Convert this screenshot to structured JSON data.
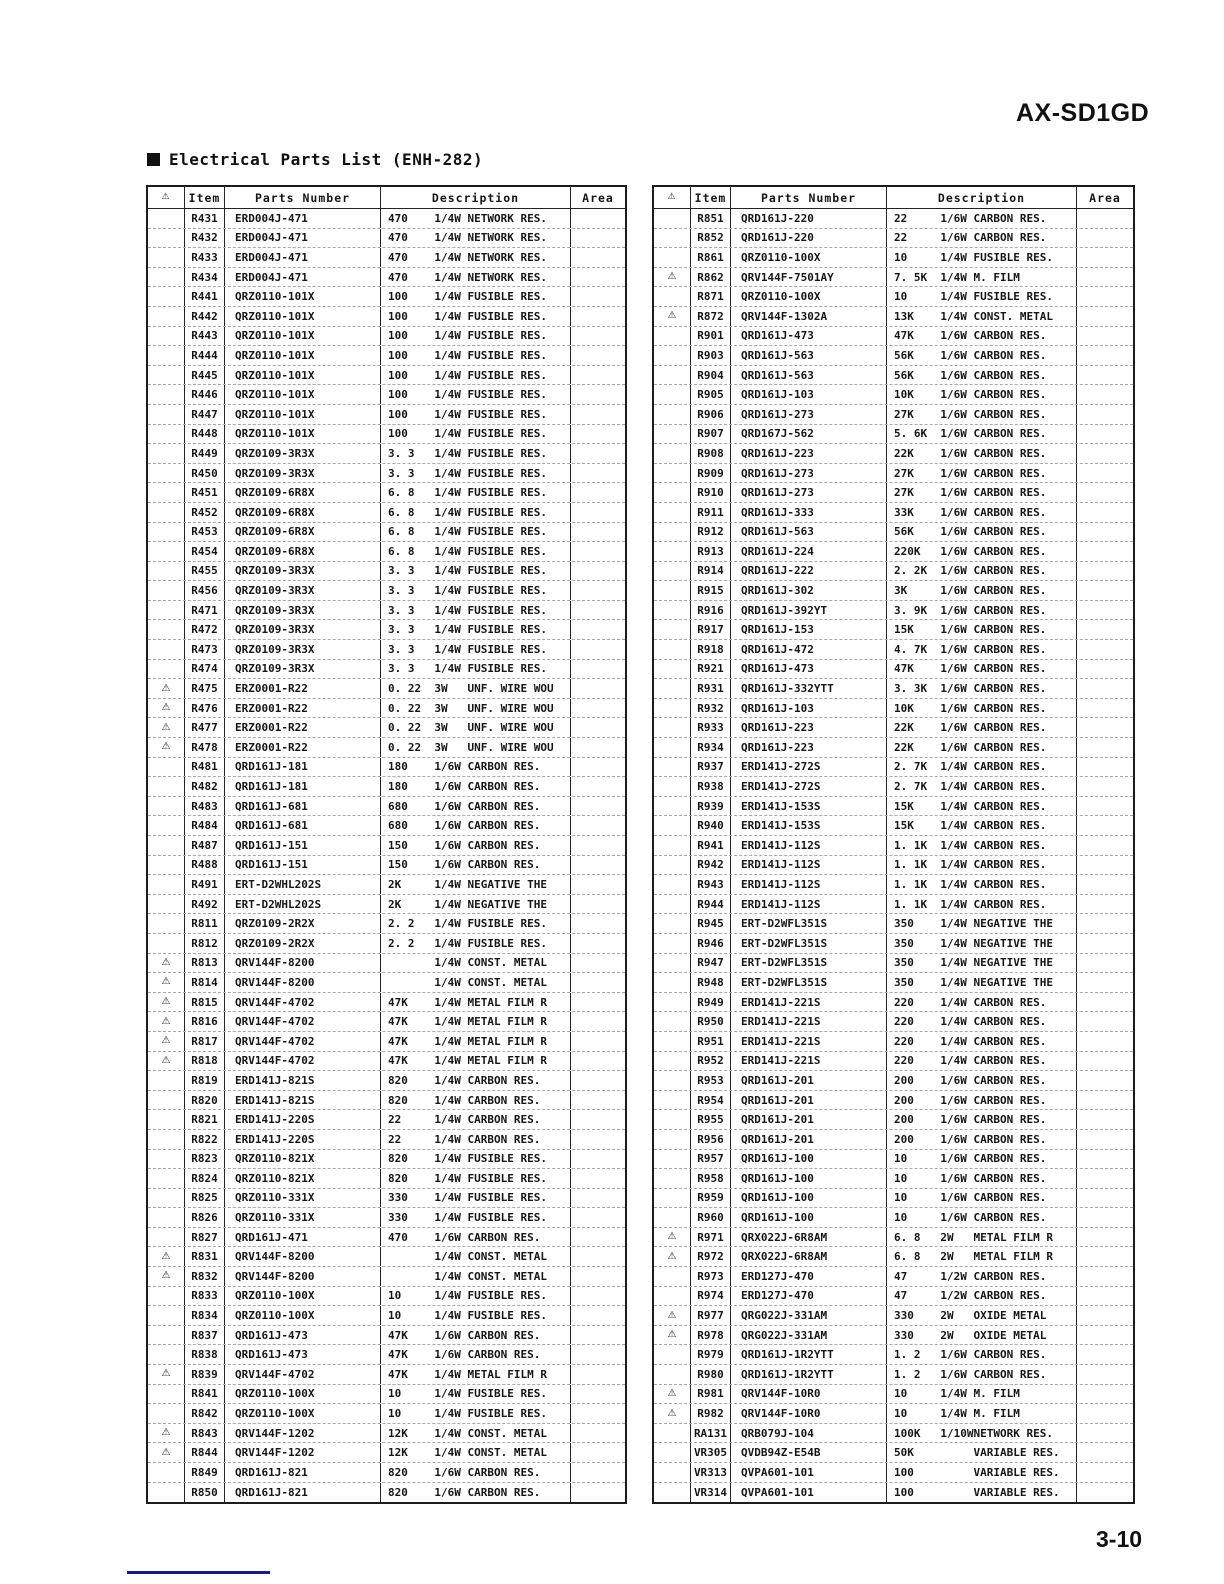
{
  "page": {
    "model": "AX-SD1GD",
    "title": "Electrical Parts List (ENH-282)",
    "page_number": "3-10"
  },
  "icons": {
    "warning": "⚠"
  },
  "colors": {
    "accent_line": "#1b1b85",
    "border": "#1c1c1c",
    "text": "#161616"
  },
  "columns": {
    "item": "Item",
    "parts_number": "Parts Number",
    "description": "Description",
    "area": "Area"
  },
  "left_table": {
    "rows": [
      [
        0,
        "R431",
        "ERD004J-471",
        "470    1/4W NETWORK RES."
      ],
      [
        0,
        "R432",
        "ERD004J-471",
        "470    1/4W NETWORK RES."
      ],
      [
        0,
        "R433",
        "ERD004J-471",
        "470    1/4W NETWORK RES."
      ],
      [
        0,
        "R434",
        "ERD004J-471",
        "470    1/4W NETWORK RES."
      ],
      [
        0,
        "R441",
        "QRZ0110-101X",
        "100    1/4W FUSIBLE RES."
      ],
      [
        0,
        "R442",
        "QRZ0110-101X",
        "100    1/4W FUSIBLE RES."
      ],
      [
        0,
        "R443",
        "QRZ0110-101X",
        "100    1/4W FUSIBLE RES."
      ],
      [
        0,
        "R444",
        "QRZ0110-101X",
        "100    1/4W FUSIBLE RES."
      ],
      [
        0,
        "R445",
        "QRZ0110-101X",
        "100    1/4W FUSIBLE RES."
      ],
      [
        0,
        "R446",
        "QRZ0110-101X",
        "100    1/4W FUSIBLE RES."
      ],
      [
        0,
        "R447",
        "QRZ0110-101X",
        "100    1/4W FUSIBLE RES."
      ],
      [
        0,
        "R448",
        "QRZ0110-101X",
        "100    1/4W FUSIBLE RES."
      ],
      [
        0,
        "R449",
        "QRZ0109-3R3X",
        "3. 3   1/4W FUSIBLE RES."
      ],
      [
        0,
        "R450",
        "QRZ0109-3R3X",
        "3. 3   1/4W FUSIBLE RES."
      ],
      [
        0,
        "R451",
        "QRZ0109-6R8X",
        "6. 8   1/4W FUSIBLE RES."
      ],
      [
        0,
        "R452",
        "QRZ0109-6R8X",
        "6. 8   1/4W FUSIBLE RES."
      ],
      [
        0,
        "R453",
        "QRZ0109-6R8X",
        "6. 8   1/4W FUSIBLE RES."
      ],
      [
        0,
        "R454",
        "QRZ0109-6R8X",
        "6. 8   1/4W FUSIBLE RES."
      ],
      [
        0,
        "R455",
        "QRZ0109-3R3X",
        "3. 3   1/4W FUSIBLE RES."
      ],
      [
        0,
        "R456",
        "QRZ0109-3R3X",
        "3. 3   1/4W FUSIBLE RES."
      ],
      [
        0,
        "R471",
        "QRZ0109-3R3X",
        "3. 3   1/4W FUSIBLE RES."
      ],
      [
        0,
        "R472",
        "QRZ0109-3R3X",
        "3. 3   1/4W FUSIBLE RES."
      ],
      [
        0,
        "R473",
        "QRZ0109-3R3X",
        "3. 3   1/4W FUSIBLE RES."
      ],
      [
        0,
        "R474",
        "QRZ0109-3R3X",
        "3. 3   1/4W FUSIBLE RES."
      ],
      [
        1,
        "R475",
        "ERZ0001-R22",
        "0. 22  3W   UNF. WIRE WOU"
      ],
      [
        1,
        "R476",
        "ERZ0001-R22",
        "0. 22  3W   UNF. WIRE WOU"
      ],
      [
        1,
        "R477",
        "ERZ0001-R22",
        "0. 22  3W   UNF. WIRE WOU"
      ],
      [
        1,
        "R478",
        "ERZ0001-R22",
        "0. 22  3W   UNF. WIRE WOU"
      ],
      [
        0,
        "R481",
        "QRD161J-181",
        "180    1/6W CARBON RES."
      ],
      [
        0,
        "R482",
        "QRD161J-181",
        "180    1/6W CARBON RES."
      ],
      [
        0,
        "R483",
        "QRD161J-681",
        "680    1/6W CARBON RES."
      ],
      [
        0,
        "R484",
        "QRD161J-681",
        "680    1/6W CARBON RES."
      ],
      [
        0,
        "R487",
        "QRD161J-151",
        "150    1/6W CARBON RES."
      ],
      [
        0,
        "R488",
        "QRD161J-151",
        "150    1/6W CARBON RES."
      ],
      [
        0,
        "R491",
        "ERT-D2WHL202S",
        "2K     1/4W NEGATIVE THE"
      ],
      [
        0,
        "R492",
        "ERT-D2WHL202S",
        "2K     1/4W NEGATIVE THE"
      ],
      [
        0,
        "R811",
        "QRZ0109-2R2X",
        "2. 2   1/4W FUSIBLE RES."
      ],
      [
        0,
        "R812",
        "QRZ0109-2R2X",
        "2. 2   1/4W FUSIBLE RES."
      ],
      [
        1,
        "R813",
        "QRV144F-8200",
        "       1/4W CONST. METAL"
      ],
      [
        1,
        "R814",
        "QRV144F-8200",
        "       1/4W CONST. METAL"
      ],
      [
        1,
        "R815",
        "QRV144F-4702",
        "47K    1/4W METAL FILM R"
      ],
      [
        1,
        "R816",
        "QRV144F-4702",
        "47K    1/4W METAL FILM R"
      ],
      [
        1,
        "R817",
        "QRV144F-4702",
        "47K    1/4W METAL FILM R"
      ],
      [
        1,
        "R818",
        "QRV144F-4702",
        "47K    1/4W METAL FILM R"
      ],
      [
        0,
        "R819",
        "ERD141J-821S",
        "820    1/4W CARBON RES."
      ],
      [
        0,
        "R820",
        "ERD141J-821S",
        "820    1/4W CARBON RES."
      ],
      [
        0,
        "R821",
        "ERD141J-220S",
        "22     1/4W CARBON RES."
      ],
      [
        0,
        "R822",
        "ERD141J-220S",
        "22     1/4W CARBON RES."
      ],
      [
        0,
        "R823",
        "QRZ0110-821X",
        "820    1/4W FUSIBLE RES."
      ],
      [
        0,
        "R824",
        "QRZ0110-821X",
        "820    1/4W FUSIBLE RES."
      ],
      [
        0,
        "R825",
        "QRZ0110-331X",
        "330    1/4W FUSIBLE RES."
      ],
      [
        0,
        "R826",
        "QRZ0110-331X",
        "330    1/4W FUSIBLE RES."
      ],
      [
        0,
        "R827",
        "QRD161J-471",
        "470    1/6W CARBON RES."
      ],
      [
        1,
        "R831",
        "QRV144F-8200",
        "       1/4W CONST. METAL"
      ],
      [
        1,
        "R832",
        "QRV144F-8200",
        "       1/4W CONST. METAL"
      ],
      [
        0,
        "R833",
        "QRZ0110-100X",
        "10     1/4W FUSIBLE RES."
      ],
      [
        0,
        "R834",
        "QRZ0110-100X",
        "10     1/4W FUSIBLE RES."
      ],
      [
        0,
        "R837",
        "QRD161J-473",
        "47K    1/6W CARBON RES."
      ],
      [
        0,
        "R838",
        "QRD161J-473",
        "47K    1/6W CARBON RES."
      ],
      [
        1,
        "R839",
        "QRV144F-4702",
        "47K    1/4W METAL FILM R"
      ],
      [
        0,
        "R841",
        "QRZ0110-100X",
        "10     1/4W FUSIBLE RES."
      ],
      [
        0,
        "R842",
        "QRZ0110-100X",
        "10     1/4W FUSIBLE RES."
      ],
      [
        1,
        "R843",
        "QRV144F-1202",
        "12K    1/4W CONST. METAL"
      ],
      [
        1,
        "R844",
        "QRV144F-1202",
        "12K    1/4W CONST. METAL"
      ],
      [
        0,
        "R849",
        "QRD161J-821",
        "820    1/6W CARBON RES."
      ],
      [
        0,
        "R850",
        "QRD161J-821",
        "820    1/6W CARBON RES."
      ]
    ]
  },
  "right_table": {
    "rows": [
      [
        0,
        "R851",
        "QRD161J-220",
        "22     1/6W CARBON RES."
      ],
      [
        0,
        "R852",
        "QRD161J-220",
        "22     1/6W CARBON RES."
      ],
      [
        0,
        "R861",
        "QRZ0110-100X",
        "10     1/4W FUSIBLE RES."
      ],
      [
        1,
        "R862",
        "QRV144F-7501AY",
        "7. 5K  1/4W M. FILM"
      ],
      [
        0,
        "R871",
        "QRZ0110-100X",
        "10     1/4W FUSIBLE RES."
      ],
      [
        1,
        "R872",
        "QRV144F-1302A",
        "13K    1/4W CONST. METAL"
      ],
      [
        0,
        "R901",
        "QRD161J-473",
        "47K    1/6W CARBON RES."
      ],
      [
        0,
        "R903",
        "QRD161J-563",
        "56K    1/6W CARBON RES."
      ],
      [
        0,
        "R904",
        "QRD161J-563",
        "56K    1/6W CARBON RES."
      ],
      [
        0,
        "R905",
        "QRD161J-103",
        "10K    1/6W CARBON RES."
      ],
      [
        0,
        "R906",
        "QRD161J-273",
        "27K    1/6W CARBON RES."
      ],
      [
        0,
        "R907",
        "QRD167J-562",
        "5. 6K  1/6W CARBON RES."
      ],
      [
        0,
        "R908",
        "QRD161J-223",
        "22K    1/6W CARBON RES."
      ],
      [
        0,
        "R909",
        "QRD161J-273",
        "27K    1/6W CARBON RES."
      ],
      [
        0,
        "R910",
        "QRD161J-273",
        "27K    1/6W CARBON RES."
      ],
      [
        0,
        "R911",
        "QRD161J-333",
        "33K    1/6W CARBON RES."
      ],
      [
        0,
        "R912",
        "QRD161J-563",
        "56K    1/6W CARBON RES."
      ],
      [
        0,
        "R913",
        "QRD161J-224",
        "220K   1/6W CARBON RES."
      ],
      [
        0,
        "R914",
        "QRD161J-222",
        "2. 2K  1/6W CARBON RES."
      ],
      [
        0,
        "R915",
        "QRD161J-302",
        "3K     1/6W CARBON RES."
      ],
      [
        0,
        "R916",
        "QRD161J-392YT",
        "3. 9K  1/6W CARBON RES."
      ],
      [
        0,
        "R917",
        "QRD161J-153",
        "15K    1/6W CARBON RES."
      ],
      [
        0,
        "R918",
        "QRD161J-472",
        "4. 7K  1/6W CARBON RES."
      ],
      [
        0,
        "R921",
        "QRD161J-473",
        "47K    1/6W CARBON RES."
      ],
      [
        0,
        "R931",
        "QRD161J-332YTT",
        "3. 3K  1/6W CARBON RES."
      ],
      [
        0,
        "R932",
        "QRD161J-103",
        "10K    1/6W CARBON RES."
      ],
      [
        0,
        "R933",
        "QRD161J-223",
        "22K    1/6W CARBON RES."
      ],
      [
        0,
        "R934",
        "QRD161J-223",
        "22K    1/6W CARBON RES."
      ],
      [
        0,
        "R937",
        "ERD141J-272S",
        "2. 7K  1/4W CARBON RES."
      ],
      [
        0,
        "R938",
        "ERD141J-272S",
        "2. 7K  1/4W CARBON RES."
      ],
      [
        0,
        "R939",
        "ERD141J-153S",
        "15K    1/4W CARBON RES."
      ],
      [
        0,
        "R940",
        "ERD141J-153S",
        "15K    1/4W CARBON RES."
      ],
      [
        0,
        "R941",
        "ERD141J-112S",
        "1. 1K  1/4W CARBON RES."
      ],
      [
        0,
        "R942",
        "ERD141J-112S",
        "1. 1K  1/4W CARBON RES."
      ],
      [
        0,
        "R943",
        "ERD141J-112S",
        "1. 1K  1/4W CARBON RES."
      ],
      [
        0,
        "R944",
        "ERD141J-112S",
        "1. 1K  1/4W CARBON RES."
      ],
      [
        0,
        "R945",
        "ERT-D2WFL351S",
        "350    1/4W NEGATIVE THE"
      ],
      [
        0,
        "R946",
        "ERT-D2WFL351S",
        "350    1/4W NEGATIVE THE"
      ],
      [
        0,
        "R947",
        "ERT-D2WFL351S",
        "350    1/4W NEGATIVE THE"
      ],
      [
        0,
        "R948",
        "ERT-D2WFL351S",
        "350    1/4W NEGATIVE THE"
      ],
      [
        0,
        "R949",
        "ERD141J-221S",
        "220    1/4W CARBON RES."
      ],
      [
        0,
        "R950",
        "ERD141J-221S",
        "220    1/4W CARBON RES."
      ],
      [
        0,
        "R951",
        "ERD141J-221S",
        "220    1/4W CARBON RES."
      ],
      [
        0,
        "R952",
        "ERD141J-221S",
        "220    1/4W CARBON RES."
      ],
      [
        0,
        "R953",
        "QRD161J-201",
        "200    1/6W CARBON RES."
      ],
      [
        0,
        "R954",
        "QRD161J-201",
        "200    1/6W CARBON RES."
      ],
      [
        0,
        "R955",
        "QRD161J-201",
        "200    1/6W CARBON RES."
      ],
      [
        0,
        "R956",
        "QRD161J-201",
        "200    1/6W CARBON RES."
      ],
      [
        0,
        "R957",
        "QRD161J-100",
        "10     1/6W CARBON RES."
      ],
      [
        0,
        "R958",
        "QRD161J-100",
        "10     1/6W CARBON RES."
      ],
      [
        0,
        "R959",
        "QRD161J-100",
        "10     1/6W CARBON RES."
      ],
      [
        0,
        "R960",
        "QRD161J-100",
        "10     1/6W CARBON RES."
      ],
      [
        1,
        "R971",
        "QRX022J-6R8AM",
        "6. 8   2W   METAL FILM R"
      ],
      [
        1,
        "R972",
        "QRX022J-6R8AM",
        "6. 8   2W   METAL FILM R"
      ],
      [
        0,
        "R973",
        "ERD127J-470",
        "47     1/2W CARBON RES."
      ],
      [
        0,
        "R974",
        "ERD127J-470",
        "47     1/2W CARBON RES."
      ],
      [
        1,
        "R977",
        "QRG022J-331AM",
        "330    2W   OXIDE METAL"
      ],
      [
        1,
        "R978",
        "QRG022J-331AM",
        "330    2W   OXIDE METAL"
      ],
      [
        0,
        "R979",
        "QRD161J-1R2YTT",
        "1. 2   1/6W CARBON RES."
      ],
      [
        0,
        "R980",
        "QRD161J-1R2YTT",
        "1. 2   1/6W CARBON RES."
      ],
      [
        1,
        "R981",
        "QRV144F-10R0",
        "10     1/4W M. FILM"
      ],
      [
        1,
        "R982",
        "QRV144F-10R0",
        "10     1/4W M. FILM"
      ],
      [
        0,
        "RA131",
        "QRB079J-104",
        "100K   1/10WNETWORK RES."
      ],
      [
        0,
        "VR305",
        "QVDB94Z-E54B",
        "50K         VARIABLE RES."
      ],
      [
        0,
        "VR313",
        "QVPA601-101",
        "100         VARIABLE RES."
      ],
      [
        0,
        "VR314",
        "QVPA601-101",
        "100         VARIABLE RES."
      ]
    ]
  }
}
